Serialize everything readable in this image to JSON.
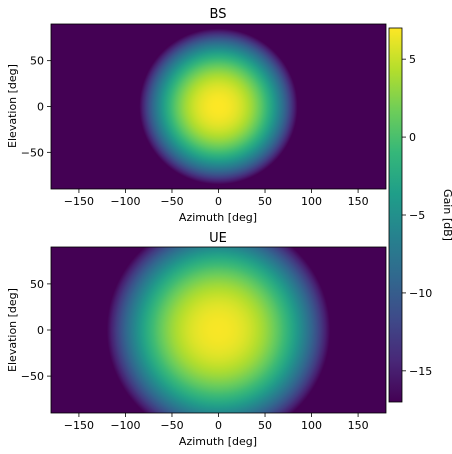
{
  "chart_data": [
    {
      "type": "heatmap",
      "title": "BS",
      "xlabel": "Azimuth [deg]",
      "ylabel": "Elevation [deg]",
      "xlim": [
        -180,
        180
      ],
      "ylim": [
        -90,
        90
      ],
      "xticks": [
        -150,
        -100,
        -50,
        0,
        50,
        100,
        150
      ],
      "yticks": [
        -50,
        0,
        50
      ],
      "peak_gain_db": 7,
      "floor_gain_db": -17,
      "pattern_radius_deg": 85
    },
    {
      "type": "heatmap",
      "title": "UE",
      "xlabel": "Azimuth [deg]",
      "ylabel": "Elevation [deg]",
      "xlim": [
        -180,
        180
      ],
      "ylim": [
        -90,
        90
      ],
      "xticks": [
        -150,
        -100,
        -50,
        0,
        50,
        100,
        150
      ],
      "yticks": [
        -50,
        0,
        50
      ],
      "peak_gain_db": 6.8,
      "floor_gain_db": -17,
      "pattern_radius_deg": 120
    }
  ],
  "colorbar": {
    "label": "Gain [dB]",
    "range": [
      -17,
      7
    ],
    "ticks": [
      5,
      0,
      -5,
      -10,
      -15
    ],
    "colormap": "viridis"
  }
}
